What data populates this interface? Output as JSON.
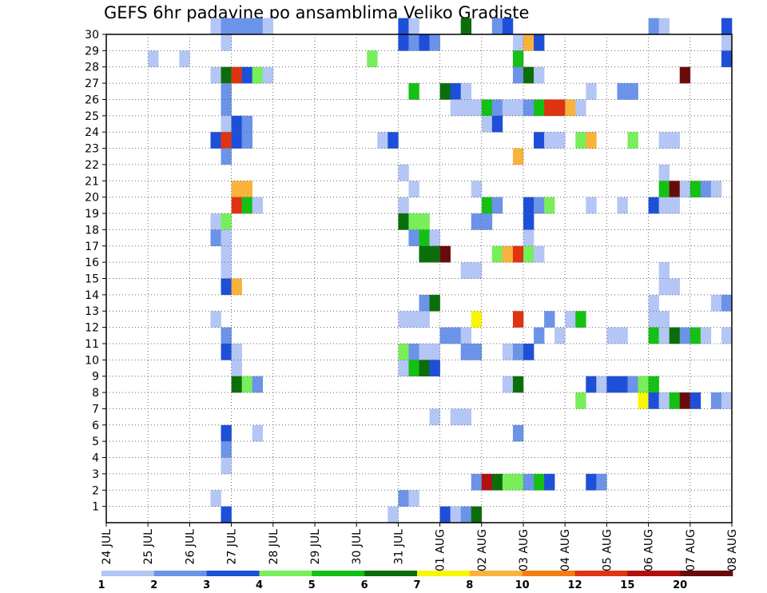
{
  "chart_data": {
    "type": "heatmap",
    "title": "GEFS 6hr padavine po ansamblima Veliko Gradiste",
    "xlabel": "",
    "ylabel": "",
    "x_ticks": [
      "24 JUL",
      "25 JUL",
      "26 JUL",
      "27 JUL",
      "28 JUL",
      "29 JUL",
      "30 JUL",
      "31 JUL",
      "01 AUG",
      "02 AUG",
      "03 AUG",
      "04 AUG",
      "05 AUG",
      "06 AUG",
      "07 AUG",
      "08 AUG"
    ],
    "y_ticks": [
      1,
      2,
      3,
      4,
      5,
      6,
      7,
      8,
      9,
      10,
      11,
      12,
      13,
      14,
      15,
      16,
      17,
      18,
      19,
      20,
      21,
      22,
      23,
      24,
      25,
      26,
      27,
      28,
      29,
      30
    ],
    "ylim": [
      0,
      30
    ],
    "x_steps": 60,
    "steps_per_day": 4,
    "grid": "dotted",
    "colorbar": {
      "labels": [
        "1",
        "2",
        "3",
        "4",
        "5",
        "6",
        "7",
        "8",
        "10",
        "12",
        "15",
        "20"
      ],
      "colors": [
        "#b4c6f5",
        "#6b93e8",
        "#1d4fd8",
        "#78ee5a",
        "#14c014",
        "#0b6e0b",
        "#f7f700",
        "#f9b23c",
        "#f57e12",
        "#df3311",
        "#b20f0f",
        "#6a0b0b"
      ]
    },
    "cells": [
      {
        "m": 30,
        "c": [
          [
            10,
            1
          ],
          [
            11,
            2
          ],
          [
            12,
            2
          ],
          [
            13,
            2
          ],
          [
            14,
            2
          ],
          [
            15,
            1
          ],
          [
            28,
            3
          ],
          [
            29,
            1
          ],
          [
            34,
            6
          ],
          [
            37,
            2
          ],
          [
            38,
            3
          ],
          [
            52,
            2
          ],
          [
            53,
            1
          ],
          [
            59,
            3
          ]
        ]
      },
      {
        "m": 29,
        "c": [
          [
            11,
            1
          ],
          [
            28,
            3
          ],
          [
            29,
            2
          ],
          [
            30,
            3
          ],
          [
            31,
            2
          ],
          [
            39,
            1
          ],
          [
            40,
            8
          ],
          [
            41,
            3
          ],
          [
            59,
            1
          ]
        ]
      },
      {
        "m": 28,
        "c": [
          [
            4,
            1
          ],
          [
            7,
            1
          ],
          [
            25,
            4
          ],
          [
            39,
            5
          ],
          [
            59,
            3
          ]
        ]
      },
      {
        "m": 27,
        "c": [
          [
            10,
            1
          ],
          [
            11,
            6
          ],
          [
            12,
            10
          ],
          [
            13,
            3
          ],
          [
            14,
            4
          ],
          [
            15,
            1
          ],
          [
            39,
            2
          ],
          [
            40,
            6
          ],
          [
            41,
            1
          ],
          [
            55,
            12
          ]
        ]
      },
      {
        "m": 26,
        "c": [
          [
            11,
            2
          ],
          [
            29,
            5
          ],
          [
            32,
            6
          ],
          [
            33,
            3
          ],
          [
            34,
            1
          ],
          [
            46,
            1
          ],
          [
            49,
            2
          ],
          [
            50,
            2
          ]
        ]
      },
      {
        "m": 25,
        "c": [
          [
            11,
            2
          ],
          [
            33,
            1
          ],
          [
            34,
            1
          ],
          [
            35,
            1
          ],
          [
            36,
            5
          ],
          [
            37,
            2
          ],
          [
            38,
            1
          ],
          [
            39,
            1
          ],
          [
            40,
            2
          ],
          [
            41,
            5
          ],
          [
            42,
            10
          ],
          [
            43,
            10
          ],
          [
            44,
            8
          ],
          [
            45,
            1
          ]
        ]
      },
      {
        "m": 24,
        "c": [
          [
            11,
            1
          ],
          [
            12,
            3
          ],
          [
            13,
            2
          ],
          [
            36,
            1
          ],
          [
            37,
            3
          ]
        ]
      },
      {
        "m": 23,
        "c": [
          [
            10,
            3
          ],
          [
            11,
            10
          ],
          [
            12,
            3
          ],
          [
            13,
            2
          ],
          [
            26,
            1
          ],
          [
            27,
            3
          ],
          [
            41,
            3
          ],
          [
            42,
            1
          ],
          [
            43,
            1
          ],
          [
            45,
            4
          ],
          [
            46,
            8
          ],
          [
            50,
            4
          ],
          [
            53,
            1
          ],
          [
            54,
            1
          ]
        ]
      },
      {
        "m": 22,
        "c": [
          [
            11,
            2
          ],
          [
            39,
            8
          ]
        ]
      },
      {
        "m": 21,
        "c": [
          [
            28,
            1
          ],
          [
            53,
            1
          ]
        ]
      },
      {
        "m": 20,
        "c": [
          [
            12,
            8
          ],
          [
            13,
            8
          ],
          [
            29,
            1
          ],
          [
            35,
            1
          ],
          [
            53,
            5
          ],
          [
            54,
            12
          ],
          [
            55,
            1
          ],
          [
            56,
            5
          ],
          [
            57,
            2
          ],
          [
            58,
            1
          ]
        ]
      },
      {
        "m": 19,
        "c": [
          [
            12,
            10
          ],
          [
            13,
            5
          ],
          [
            14,
            1
          ],
          [
            28,
            1
          ],
          [
            36,
            5
          ],
          [
            37,
            2
          ],
          [
            40,
            3
          ],
          [
            41,
            2
          ],
          [
            42,
            4
          ],
          [
            46,
            1
          ],
          [
            49,
            1
          ],
          [
            52,
            3
          ],
          [
            53,
            1
          ],
          [
            54,
            1
          ]
        ]
      },
      {
        "m": 18,
        "c": [
          [
            10,
            1
          ],
          [
            11,
            4
          ],
          [
            28,
            6
          ],
          [
            29,
            4
          ],
          [
            30,
            4
          ],
          [
            35,
            2
          ],
          [
            36,
            2
          ],
          [
            40,
            3
          ]
        ]
      },
      {
        "m": 17,
        "c": [
          [
            10,
            2
          ],
          [
            11,
            1
          ],
          [
            29,
            2
          ],
          [
            30,
            5
          ],
          [
            31,
            1
          ],
          [
            40,
            1
          ]
        ]
      },
      {
        "m": 16,
        "c": [
          [
            11,
            1
          ],
          [
            30,
            6
          ],
          [
            31,
            6
          ],
          [
            32,
            12
          ],
          [
            37,
            4
          ],
          [
            38,
            8
          ],
          [
            39,
            10
          ],
          [
            40,
            4
          ],
          [
            41,
            1
          ]
        ]
      },
      {
        "m": 15,
        "c": [
          [
            11,
            1
          ],
          [
            34,
            1
          ],
          [
            35,
            1
          ],
          [
            53,
            1
          ]
        ]
      },
      {
        "m": 14,
        "c": [
          [
            11,
            3
          ],
          [
            12,
            8
          ],
          [
            53,
            1
          ],
          [
            54,
            1
          ]
        ]
      },
      {
        "m": 13,
        "c": [
          [
            30,
            2
          ],
          [
            31,
            6
          ],
          [
            52,
            1
          ],
          [
            58,
            1
          ],
          [
            59,
            2
          ]
        ]
      },
      {
        "m": 12,
        "c": [
          [
            10,
            1
          ],
          [
            28,
            1
          ],
          [
            29,
            1
          ],
          [
            30,
            1
          ],
          [
            35,
            7
          ],
          [
            39,
            10
          ],
          [
            42,
            2
          ],
          [
            44,
            1
          ],
          [
            45,
            5
          ],
          [
            52,
            1
          ],
          [
            53,
            1
          ]
        ]
      },
      {
        "m": 11,
        "c": [
          [
            11,
            2
          ],
          [
            32,
            2
          ],
          [
            33,
            2
          ],
          [
            34,
            1
          ],
          [
            41,
            2
          ],
          [
            43,
            1
          ],
          [
            48,
            1
          ],
          [
            49,
            1
          ],
          [
            52,
            5
          ],
          [
            53,
            1
          ],
          [
            54,
            6
          ],
          [
            55,
            2
          ],
          [
            56,
            5
          ],
          [
            57,
            1
          ],
          [
            59,
            1
          ]
        ]
      },
      {
        "m": 10,
        "c": [
          [
            11,
            3
          ],
          [
            12,
            1
          ],
          [
            28,
            4
          ],
          [
            29,
            2
          ],
          [
            30,
            1
          ],
          [
            31,
            1
          ],
          [
            34,
            2
          ],
          [
            35,
            2
          ],
          [
            38,
            1
          ],
          [
            39,
            2
          ],
          [
            40,
            3
          ]
        ]
      },
      {
        "m": 9,
        "c": [
          [
            12,
            1
          ],
          [
            28,
            1
          ],
          [
            29,
            5
          ],
          [
            30,
            6
          ],
          [
            31,
            3
          ]
        ]
      },
      {
        "m": 8,
        "c": [
          [
            12,
            6
          ],
          [
            13,
            4
          ],
          [
            14,
            2
          ],
          [
            38,
            1
          ],
          [
            39,
            6
          ],
          [
            46,
            3
          ],
          [
            47,
            1
          ],
          [
            48,
            3
          ],
          [
            49,
            3
          ],
          [
            50,
            2
          ],
          [
            51,
            4
          ],
          [
            52,
            5
          ]
        ]
      },
      {
        "m": 7,
        "c": [
          [
            45,
            4
          ],
          [
            51,
            7
          ],
          [
            52,
            3
          ],
          [
            53,
            1
          ],
          [
            54,
            5
          ],
          [
            55,
            12
          ],
          [
            56,
            3
          ],
          [
            58,
            2
          ],
          [
            59,
            1
          ]
        ]
      },
      {
        "m": 6,
        "c": [
          [
            31,
            1
          ],
          [
            33,
            1
          ],
          [
            34,
            1
          ]
        ]
      },
      {
        "m": 5,
        "c": [
          [
            11,
            3
          ],
          [
            14,
            1
          ],
          [
            39,
            2
          ]
        ]
      },
      {
        "m": 4,
        "c": [
          [
            11,
            2
          ]
        ]
      },
      {
        "m": 3,
        "c": [
          [
            11,
            1
          ]
        ]
      },
      {
        "m": 2,
        "c": [
          [
            35,
            2
          ],
          [
            36,
            11
          ],
          [
            37,
            6
          ],
          [
            38,
            4
          ],
          [
            39,
            4
          ],
          [
            40,
            2
          ],
          [
            41,
            5
          ],
          [
            42,
            3
          ],
          [
            46,
            3
          ],
          [
            47,
            2
          ]
        ]
      },
      {
        "m": 1,
        "c": [
          [
            10,
            1
          ],
          [
            28,
            2
          ],
          [
            29,
            1
          ]
        ]
      },
      {
        "m": 0,
        "c": [
          [
            11,
            3
          ],
          [
            27,
            1
          ],
          [
            32,
            3
          ],
          [
            33,
            1
          ],
          [
            34,
            2
          ],
          [
            35,
            6
          ]
        ]
      }
    ]
  }
}
